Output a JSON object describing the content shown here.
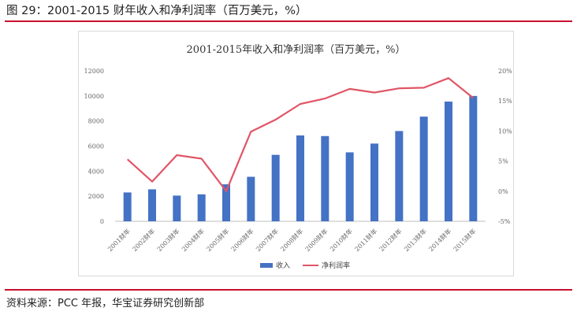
{
  "figure_title": "图 29：2001-2015 财年收入和净利润率（百万美元，%）",
  "source_note": "资料来源：PCC 年报，华宝证券研究创新部",
  "colors": {
    "accent_rule": "#c8102e",
    "revenue_bar": "#4472c4",
    "margin_line": "#e05566"
  },
  "chart_data": {
    "type": "bar",
    "title": "2001-2015年收入和净利润率（百万美元，%）",
    "categories": [
      "2001财年",
      "2002财年",
      "2003财年",
      "2004财年",
      "2005财年",
      "2006财年",
      "2007财年",
      "2008财年",
      "2009财年",
      "2010财年",
      "2011财年",
      "2012财年",
      "2013财年",
      "2014财年",
      "2015财年"
    ],
    "series": [
      {
        "name": "收入",
        "type": "bar",
        "axis": "left",
        "values": [
          2300,
          2550,
          2050,
          2150,
          2950,
          3550,
          5300,
          6850,
          6800,
          5500,
          6200,
          7200,
          8350,
          9550,
          10000
        ]
      },
      {
        "name": "净利润率",
        "type": "line",
        "axis": "right",
        "values": [
          5.3,
          1.6,
          6.0,
          5.4,
          0.0,
          9.9,
          11.9,
          14.5,
          15.4,
          17.0,
          16.4,
          17.1,
          17.2,
          18.8,
          15.5
        ]
      }
    ],
    "y_left": {
      "min": 0,
      "max": 12000,
      "step": 2000,
      "ticks": [
        "0",
        "2000",
        "4000",
        "6000",
        "8000",
        "10000",
        "12000"
      ]
    },
    "y_right": {
      "min": -5,
      "max": 20,
      "step": 5,
      "ticks": [
        "-5%",
        "0%",
        "5%",
        "10%",
        "15%",
        "20%"
      ]
    },
    "legend_position": "bottom",
    "grid": false
  }
}
